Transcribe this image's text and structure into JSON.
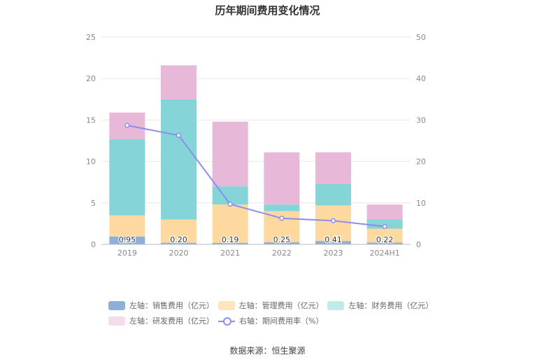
{
  "title": "历年期间费用变化情况",
  "source": "数据来源：恒生聚源",
  "legend": [
    {
      "label": "左轴：销售费用（亿元）",
      "color": "#8eaedc"
    },
    {
      "label": "左轴：管理费用（亿元）",
      "color": "#fdd9a0"
    },
    {
      "label": "左轴：财务费用（亿元）",
      "color": "#84d4d8"
    },
    {
      "label": "左轴：研发费用（亿元）",
      "color": "#e8b8d8"
    },
    {
      "label": "右轴：期间费用率（%）",
      "color": "#8a8ef0"
    }
  ],
  "chart_data": {
    "type": "bar",
    "stacked": true,
    "categories": [
      "2019",
      "2020",
      "2021",
      "2022",
      "2023",
      "2024H1"
    ],
    "series": [
      {
        "name": "左轴：销售费用（亿元）",
        "axis": "left",
        "values": [
          0.95,
          0.2,
          0.19,
          0.25,
          0.41,
          0.22
        ],
        "labels": [
          "0.95",
          "0.20",
          "0.19",
          "0.25",
          "0.41",
          "0.22"
        ],
        "color": "#8eaedc"
      },
      {
        "name": "左轴：管理费用（亿元）",
        "axis": "left",
        "values": [
          2.55,
          2.8,
          4.61,
          3.75,
          4.29,
          1.68
        ],
        "color": "#fdd9a0"
      },
      {
        "name": "左轴：财务费用（亿元）",
        "axis": "left",
        "values": [
          9.2,
          14.5,
          2.2,
          0.8,
          2.6,
          1.1
        ],
        "color": "#84d4d8"
      },
      {
        "name": "左轴：研发费用（亿元）",
        "axis": "left",
        "values": [
          3.2,
          4.1,
          7.8,
          6.3,
          3.8,
          1.8
        ],
        "color": "#e8b8d8"
      },
      {
        "name": "右轴：期间费用率（%）",
        "axis": "right",
        "type": "line",
        "values": [
          28.7,
          26.3,
          9.7,
          6.3,
          5.7,
          4.3
        ],
        "color": "#8a8ef0"
      }
    ],
    "left_axis": {
      "min": 0,
      "max": 25,
      "ticks": [
        0,
        5,
        10,
        15,
        20,
        25
      ]
    },
    "right_axis": {
      "min": 0,
      "max": 50,
      "ticks": [
        0,
        10,
        20,
        30,
        40,
        50
      ]
    },
    "grid": true,
    "legend_position": "bottom"
  }
}
